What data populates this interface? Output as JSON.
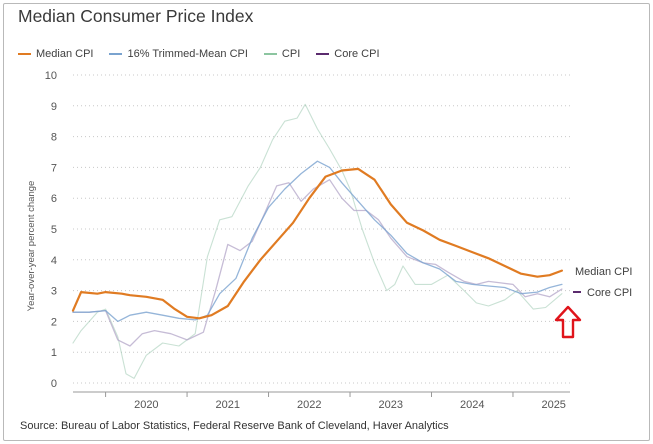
{
  "title": "Median Consumer Price Index",
  "source": "Source: Bureau of Labor Statistics, Federal Reserve Bank of Cleveland, Haver Analytics",
  "legend": [
    {
      "label": "Median CPI",
      "color": "#e07b22"
    },
    {
      "label": "16% Trimmed-Mean CPI",
      "color": "#7aa3cf"
    },
    {
      "label": "CPI",
      "color": "#8cc5a0"
    },
    {
      "label": "Core CPI",
      "color": "#5b2b6e"
    }
  ],
  "end_labels": {
    "median": "Median CPI",
    "core": "Core CPI"
  },
  "annotation": {
    "type": "red-outline-up-arrow",
    "color": "#e0141b"
  },
  "chart_data": {
    "type": "line",
    "title": "Median Consumer Price Index",
    "xlabel": "",
    "ylabel": "Year-over-year percent change",
    "xlim": [
      2019.6,
      2025.7
    ],
    "ylim": [
      0,
      10
    ],
    "yticks": [
      0,
      1,
      2,
      3,
      4,
      5,
      6,
      7,
      8,
      9,
      10
    ],
    "xticks": [
      "2020",
      "2021",
      "2022",
      "2023",
      "2024",
      "2025"
    ],
    "grid": "horizontal dotted",
    "legend_position": "top",
    "series": [
      {
        "name": "Median CPI",
        "color": "#e07b22",
        "width": 2.2,
        "opacity": 1.0,
        "points": [
          [
            2019.6,
            2.35
          ],
          [
            2019.7,
            2.95
          ],
          [
            2019.9,
            2.9
          ],
          [
            2020.0,
            2.95
          ],
          [
            2020.2,
            2.9
          ],
          [
            2020.3,
            2.85
          ],
          [
            2020.5,
            2.8
          ],
          [
            2020.7,
            2.7
          ],
          [
            2020.85,
            2.4
          ],
          [
            2021.0,
            2.15
          ],
          [
            2021.15,
            2.1
          ],
          [
            2021.3,
            2.2
          ],
          [
            2021.5,
            2.5
          ],
          [
            2021.7,
            3.3
          ],
          [
            2021.9,
            4.0
          ],
          [
            2022.1,
            4.6
          ],
          [
            2022.3,
            5.2
          ],
          [
            2022.5,
            6.0
          ],
          [
            2022.7,
            6.7
          ],
          [
            2022.9,
            6.9
          ],
          [
            2023.1,
            6.95
          ],
          [
            2023.3,
            6.6
          ],
          [
            2023.5,
            5.8
          ],
          [
            2023.7,
            5.2
          ],
          [
            2023.9,
            4.95
          ],
          [
            2024.1,
            4.65
          ],
          [
            2024.3,
            4.45
          ],
          [
            2024.5,
            4.25
          ],
          [
            2024.7,
            4.05
          ],
          [
            2024.9,
            3.8
          ],
          [
            2025.1,
            3.55
          ],
          [
            2025.3,
            3.45
          ],
          [
            2025.45,
            3.5
          ],
          [
            2025.6,
            3.65
          ]
        ]
      },
      {
        "name": "16% Trimmed-Mean CPI",
        "color": "#7aa3cf",
        "width": 1.3,
        "opacity": 0.8,
        "points": [
          [
            2019.6,
            2.3
          ],
          [
            2019.8,
            2.3
          ],
          [
            2020.0,
            2.35
          ],
          [
            2020.15,
            2.0
          ],
          [
            2020.3,
            2.2
          ],
          [
            2020.5,
            2.3
          ],
          [
            2020.7,
            2.2
          ],
          [
            2020.9,
            2.1
          ],
          [
            2021.1,
            2.05
          ],
          [
            2021.25,
            2.2
          ],
          [
            2021.4,
            2.9
          ],
          [
            2021.6,
            3.4
          ],
          [
            2021.8,
            4.7
          ],
          [
            2022.0,
            5.7
          ],
          [
            2022.2,
            6.3
          ],
          [
            2022.4,
            6.8
          ],
          [
            2022.6,
            7.2
          ],
          [
            2022.75,
            7.0
          ],
          [
            2022.9,
            6.5
          ],
          [
            2023.1,
            5.9
          ],
          [
            2023.3,
            5.3
          ],
          [
            2023.5,
            4.8
          ],
          [
            2023.7,
            4.2
          ],
          [
            2023.9,
            3.9
          ],
          [
            2024.1,
            3.7
          ],
          [
            2024.3,
            3.3
          ],
          [
            2024.5,
            3.2
          ],
          [
            2024.7,
            3.15
          ],
          [
            2024.9,
            3.1
          ],
          [
            2025.1,
            2.9
          ],
          [
            2025.3,
            2.95
          ],
          [
            2025.45,
            3.1
          ],
          [
            2025.6,
            3.2
          ]
        ]
      },
      {
        "name": "CPI",
        "color": "#9dc9b0",
        "width": 1.1,
        "opacity": 0.55,
        "points": [
          [
            2019.6,
            1.3
          ],
          [
            2019.7,
            1.7
          ],
          [
            2019.9,
            2.3
          ],
          [
            2020.0,
            2.4
          ],
          [
            2020.15,
            1.5
          ],
          [
            2020.25,
            0.3
          ],
          [
            2020.35,
            0.15
          ],
          [
            2020.5,
            0.9
          ],
          [
            2020.7,
            1.3
          ],
          [
            2020.9,
            1.2
          ],
          [
            2021.1,
            1.6
          ],
          [
            2021.25,
            4.1
          ],
          [
            2021.4,
            5.3
          ],
          [
            2021.55,
            5.4
          ],
          [
            2021.75,
            6.4
          ],
          [
            2021.9,
            7.0
          ],
          [
            2022.05,
            7.9
          ],
          [
            2022.2,
            8.5
          ],
          [
            2022.35,
            8.6
          ],
          [
            2022.45,
            9.05
          ],
          [
            2022.6,
            8.25
          ],
          [
            2022.75,
            7.6
          ],
          [
            2022.9,
            6.9
          ],
          [
            2023.0,
            6.3
          ],
          [
            2023.15,
            5.0
          ],
          [
            2023.3,
            3.9
          ],
          [
            2023.45,
            3.0
          ],
          [
            2023.55,
            3.2
          ],
          [
            2023.65,
            3.8
          ],
          [
            2023.8,
            3.2
          ],
          [
            2024.0,
            3.2
          ],
          [
            2024.2,
            3.5
          ],
          [
            2024.4,
            3.0
          ],
          [
            2024.55,
            2.6
          ],
          [
            2024.7,
            2.5
          ],
          [
            2024.9,
            2.7
          ],
          [
            2025.05,
            3.0
          ],
          [
            2025.25,
            2.4
          ],
          [
            2025.4,
            2.45
          ],
          [
            2025.6,
            2.9
          ]
        ]
      },
      {
        "name": "Core CPI",
        "color": "#b3a5c8",
        "width": 1.3,
        "opacity": 0.75,
        "points": [
          [
            2019.6,
            2.3
          ],
          [
            2019.8,
            2.3
          ],
          [
            2020.0,
            2.35
          ],
          [
            2020.15,
            1.4
          ],
          [
            2020.3,
            1.2
          ],
          [
            2020.45,
            1.6
          ],
          [
            2020.6,
            1.7
          ],
          [
            2020.8,
            1.6
          ],
          [
            2021.0,
            1.4
          ],
          [
            2021.2,
            1.65
          ],
          [
            2021.35,
            3.0
          ],
          [
            2021.5,
            4.5
          ],
          [
            2021.65,
            4.3
          ],
          [
            2021.8,
            4.6
          ],
          [
            2021.95,
            5.5
          ],
          [
            2022.1,
            6.4
          ],
          [
            2022.25,
            6.5
          ],
          [
            2022.4,
            5.9
          ],
          [
            2022.55,
            6.3
          ],
          [
            2022.75,
            6.6
          ],
          [
            2022.9,
            6.0
          ],
          [
            2023.05,
            5.6
          ],
          [
            2023.2,
            5.6
          ],
          [
            2023.35,
            5.3
          ],
          [
            2023.5,
            4.7
          ],
          [
            2023.7,
            4.1
          ],
          [
            2023.9,
            3.9
          ],
          [
            2024.05,
            3.85
          ],
          [
            2024.2,
            3.6
          ],
          [
            2024.4,
            3.3
          ],
          [
            2024.55,
            3.2
          ],
          [
            2024.7,
            3.3
          ],
          [
            2024.85,
            3.25
          ],
          [
            2025.0,
            3.2
          ],
          [
            2025.15,
            2.8
          ],
          [
            2025.3,
            2.9
          ],
          [
            2025.45,
            2.8
          ],
          [
            2025.6,
            3.05
          ]
        ]
      }
    ]
  }
}
